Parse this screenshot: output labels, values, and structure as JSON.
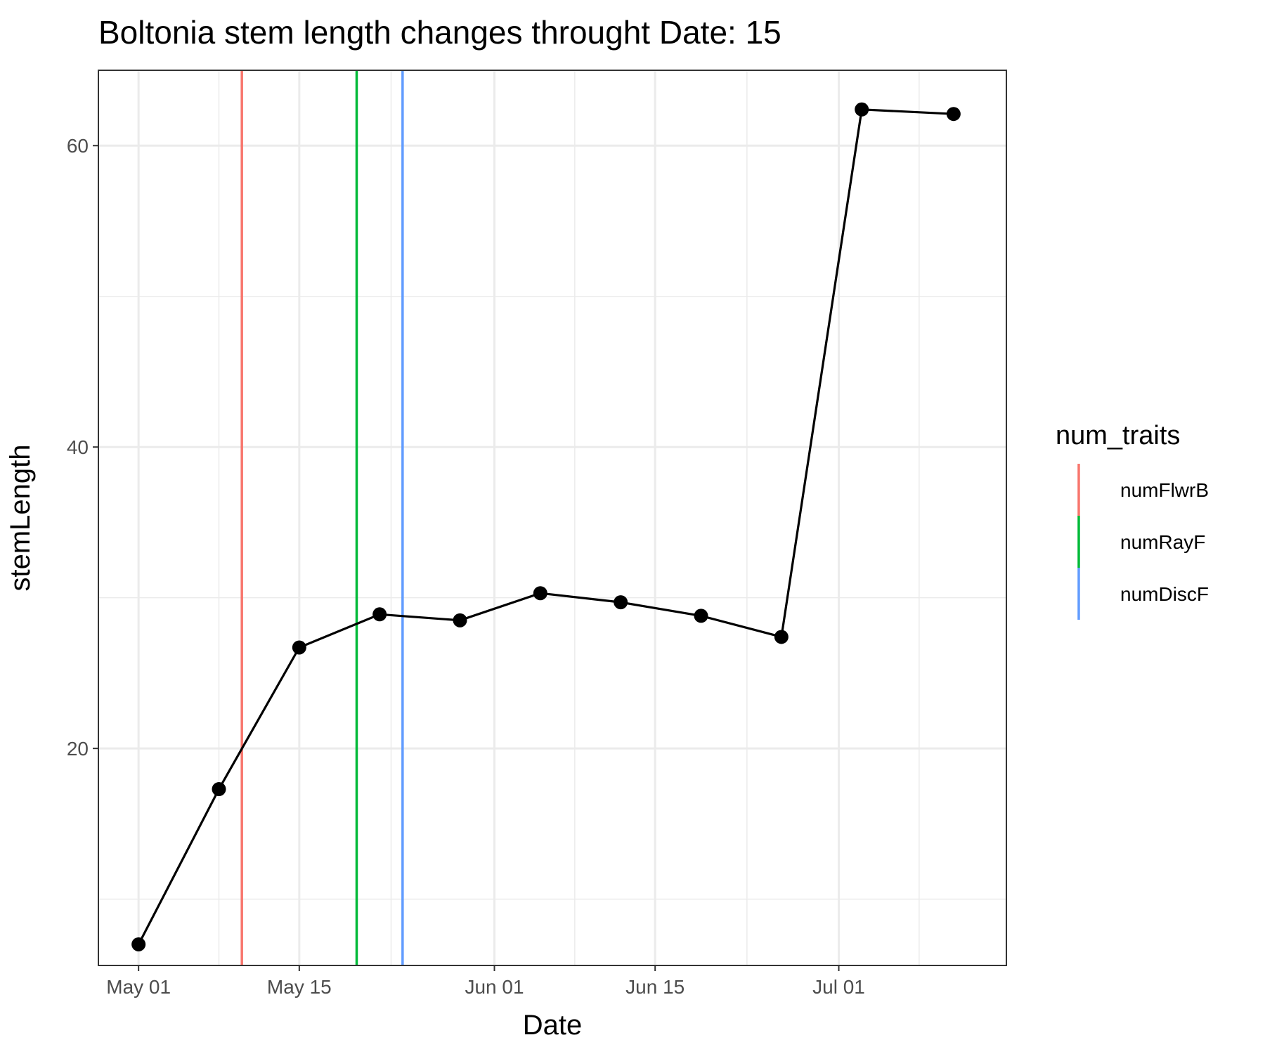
{
  "chart_data": {
    "type": "line",
    "title": "Boltonia stem length changes throught Date:  15",
    "xlabel": "Date",
    "ylabel": "stemLength",
    "x_ticks": [
      "May 01",
      "May 15",
      "Jun 01",
      "Jun 15",
      "Jul 01"
    ],
    "x_tick_dates": [
      "2000-05-01",
      "2000-05-15",
      "2000-06-01",
      "2000-06-15",
      "2000-07-01"
    ],
    "x_minor_dates": [
      "2000-05-08",
      "2000-05-23",
      "2000-06-08",
      "2000-06-23",
      "2000-07-08"
    ],
    "xlim": [
      "2000-04-27.5",
      "2000-07-15.6"
    ],
    "y_ticks": [
      "20",
      "40",
      "60"
    ],
    "y_tick_values": [
      20,
      40,
      60
    ],
    "y_minor_values": [
      10,
      30,
      50
    ],
    "ylim": [
      5.6,
      65
    ],
    "grid": true,
    "series": [
      {
        "color": "#000000",
        "x": [
          "2000-05-01",
          "2000-05-08",
          "2000-05-15",
          "2000-05-22",
          "2000-05-29",
          "2000-06-05",
          "2000-06-12",
          "2000-06-19",
          "2000-06-26",
          "2000-07-03",
          "2000-07-11"
        ],
        "y": [
          7.0,
          17.3,
          26.7,
          28.9,
          28.5,
          30.3,
          29.7,
          28.8,
          27.4,
          62.4,
          62.1
        ]
      }
    ],
    "vlines": [
      {
        "name": "numFlwrB",
        "date": "2000-05-10",
        "color": "#F8766D"
      },
      {
        "name": "numRayF",
        "date": "2000-05-20",
        "color": "#00BA38"
      },
      {
        "name": "numDiscF",
        "date": "2000-05-24",
        "color": "#619CFF"
      }
    ],
    "legend": {
      "title": "num_traits",
      "position": "right",
      "entries": [
        "numFlwrB",
        "numRayF",
        "numDiscF"
      ]
    }
  }
}
